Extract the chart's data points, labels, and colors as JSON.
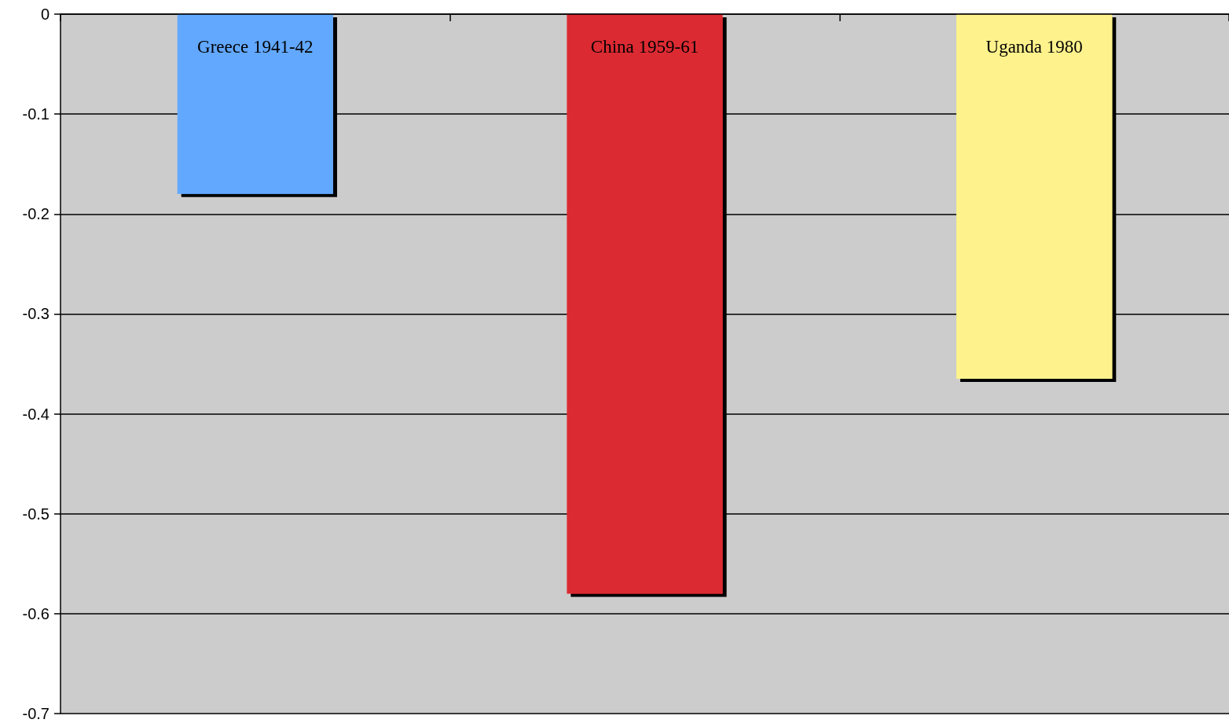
{
  "chart_data": {
    "type": "bar",
    "categories": [
      "Greece 1941-42",
      "China 1959-61",
      "Uganda 1980"
    ],
    "values": [
      -0.18,
      -0.58,
      -0.365
    ],
    "colors": [
      "#62a8ff",
      "#dc2b32",
      "#fef28c"
    ],
    "ylim": [
      -0.7,
      0
    ],
    "yticks": [
      0,
      -0.1,
      -0.2,
      -0.3,
      -0.4,
      -0.5,
      -0.6,
      -0.7
    ],
    "grid": "y"
  }
}
